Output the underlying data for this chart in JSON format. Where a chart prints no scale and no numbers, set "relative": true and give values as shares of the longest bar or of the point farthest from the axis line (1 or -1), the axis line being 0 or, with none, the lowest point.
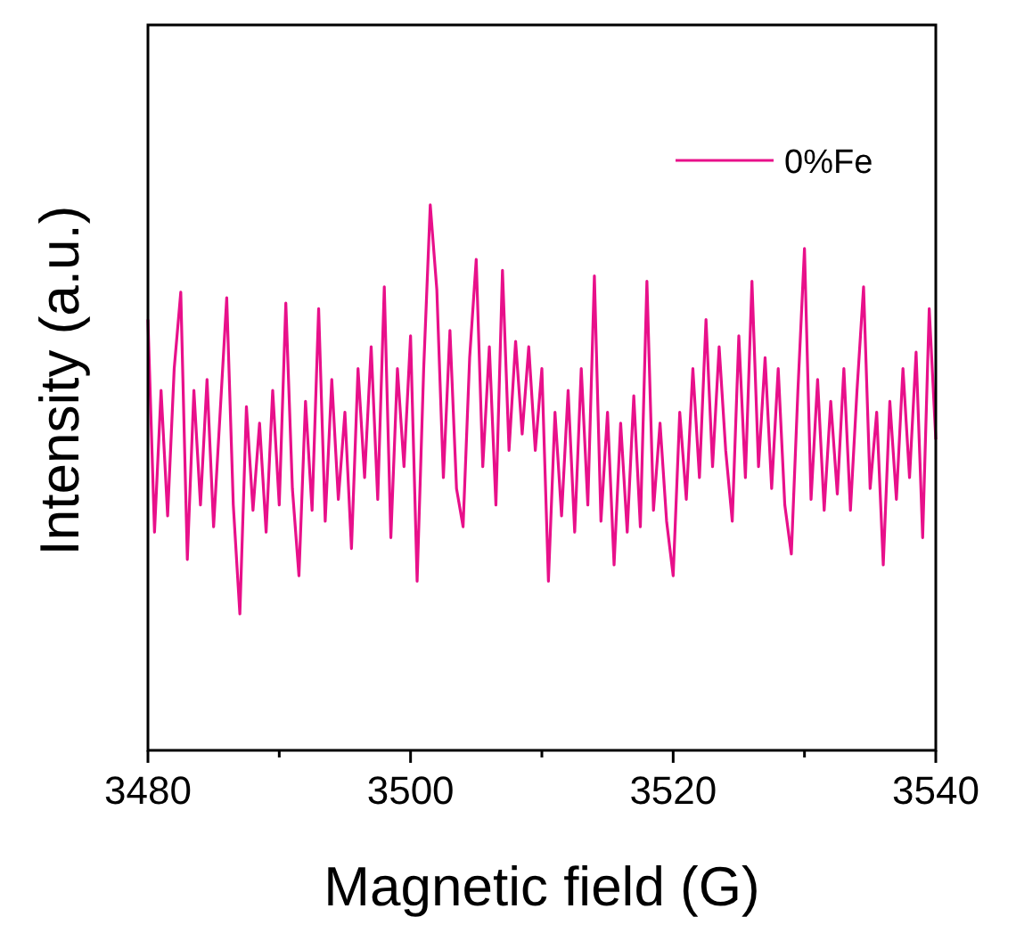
{
  "chart_data": {
    "type": "line",
    "xlabel": "Magnetic field (G)",
    "ylabel": "Intensity (a.u.)",
    "relative": true,
    "xlim": [
      3480,
      3540
    ],
    "xticks": [
      3480,
      {
        "value": 3490,
        "label": null
      },
      3500,
      {
        "value": 3510,
        "label": null
      },
      3520,
      {
        "value": 3530,
        "label": null
      },
      3540
    ],
    "legend": "top right",
    "grid": false,
    "tick_labels": "x",
    "x": [
      3480,
      3480.5,
      3481,
      3481.5,
      3482,
      3482.5,
      3483,
      3483.5,
      3484,
      3484.5,
      3485,
      3485.5,
      3486,
      3486.5,
      3487,
      3487.5,
      3488,
      3488.5,
      3489,
      3489.5,
      3490,
      3490.5,
      3491,
      3491.5,
      3492,
      3492.5,
      3493,
      3493.5,
      3494,
      3494.5,
      3495,
      3495.5,
      3496,
      3496.5,
      3497,
      3497.5,
      3498,
      3498.5,
      3499,
      3499.5,
      3500,
      3500.5,
      3501,
      3501.5,
      3502,
      3502.5,
      3503,
      3503.5,
      3504,
      3504.5,
      3505,
      3505.5,
      3506,
      3506.5,
      3507,
      3507.5,
      3508,
      3508.5,
      3509,
      3509.5,
      3510,
      3510.5,
      3511,
      3511.5,
      3512,
      3512.5,
      3513,
      3513.5,
      3514,
      3514.5,
      3515,
      3515.5,
      3516,
      3516.5,
      3517,
      3517.5,
      3518,
      3518.5,
      3519,
      3519.5,
      3520,
      3520.5,
      3521,
      3521.5,
      3522,
      3522.5,
      3523,
      3523.5,
      3524,
      3524.5,
      3525,
      3525.5,
      3526,
      3526.5,
      3527,
      3527.5,
      3528,
      3528.5,
      3529,
      3529.5,
      3530,
      3530.5,
      3531,
      3531.5,
      3532,
      3532.5,
      3533,
      3533.5,
      3534,
      3534.5,
      3535,
      3535.5,
      3536,
      3536.5,
      3537,
      3537.5,
      3538,
      3538.5,
      3539,
      3539.5,
      3540
    ],
    "series": [
      {
        "name": "0%Fe",
        "color": "#e8108a",
        "values": [
          0.79,
          0.4,
          0.66,
          0.43,
          0.7,
          0.84,
          0.35,
          0.66,
          0.45,
          0.68,
          0.41,
          0.62,
          0.83,
          0.45,
          0.25,
          0.63,
          0.44,
          0.6,
          0.4,
          0.66,
          0.45,
          0.82,
          0.48,
          0.32,
          0.64,
          0.44,
          0.81,
          0.42,
          0.68,
          0.46,
          0.62,
          0.37,
          0.7,
          0.5,
          0.74,
          0.46,
          0.85,
          0.39,
          0.7,
          0.52,
          0.76,
          0.31,
          0.7,
          1.0,
          0.845,
          0.5,
          0.77,
          0.48,
          0.41,
          0.72,
          0.9,
          0.52,
          0.74,
          0.45,
          0.88,
          0.55,
          0.75,
          0.58,
          0.74,
          0.55,
          0.7,
          0.31,
          0.62,
          0.43,
          0.66,
          0.4,
          0.7,
          0.45,
          0.87,
          0.42,
          0.62,
          0.34,
          0.6,
          0.4,
          0.65,
          0.41,
          0.86,
          0.44,
          0.6,
          0.42,
          0.32,
          0.62,
          0.46,
          0.7,
          0.5,
          0.79,
          0.52,
          0.74,
          0.55,
          0.42,
          0.76,
          0.5,
          0.86,
          0.52,
          0.72,
          0.48,
          0.7,
          0.45,
          0.36,
          0.66,
          0.92,
          0.46,
          0.68,
          0.44,
          0.64,
          0.47,
          0.7,
          0.44,
          0.66,
          0.85,
          0.48,
          0.62,
          0.34,
          0.64,
          0.46,
          0.7,
          0.5,
          0.73,
          0.39,
          0.81,
          0.57
        ]
      }
    ]
  }
}
